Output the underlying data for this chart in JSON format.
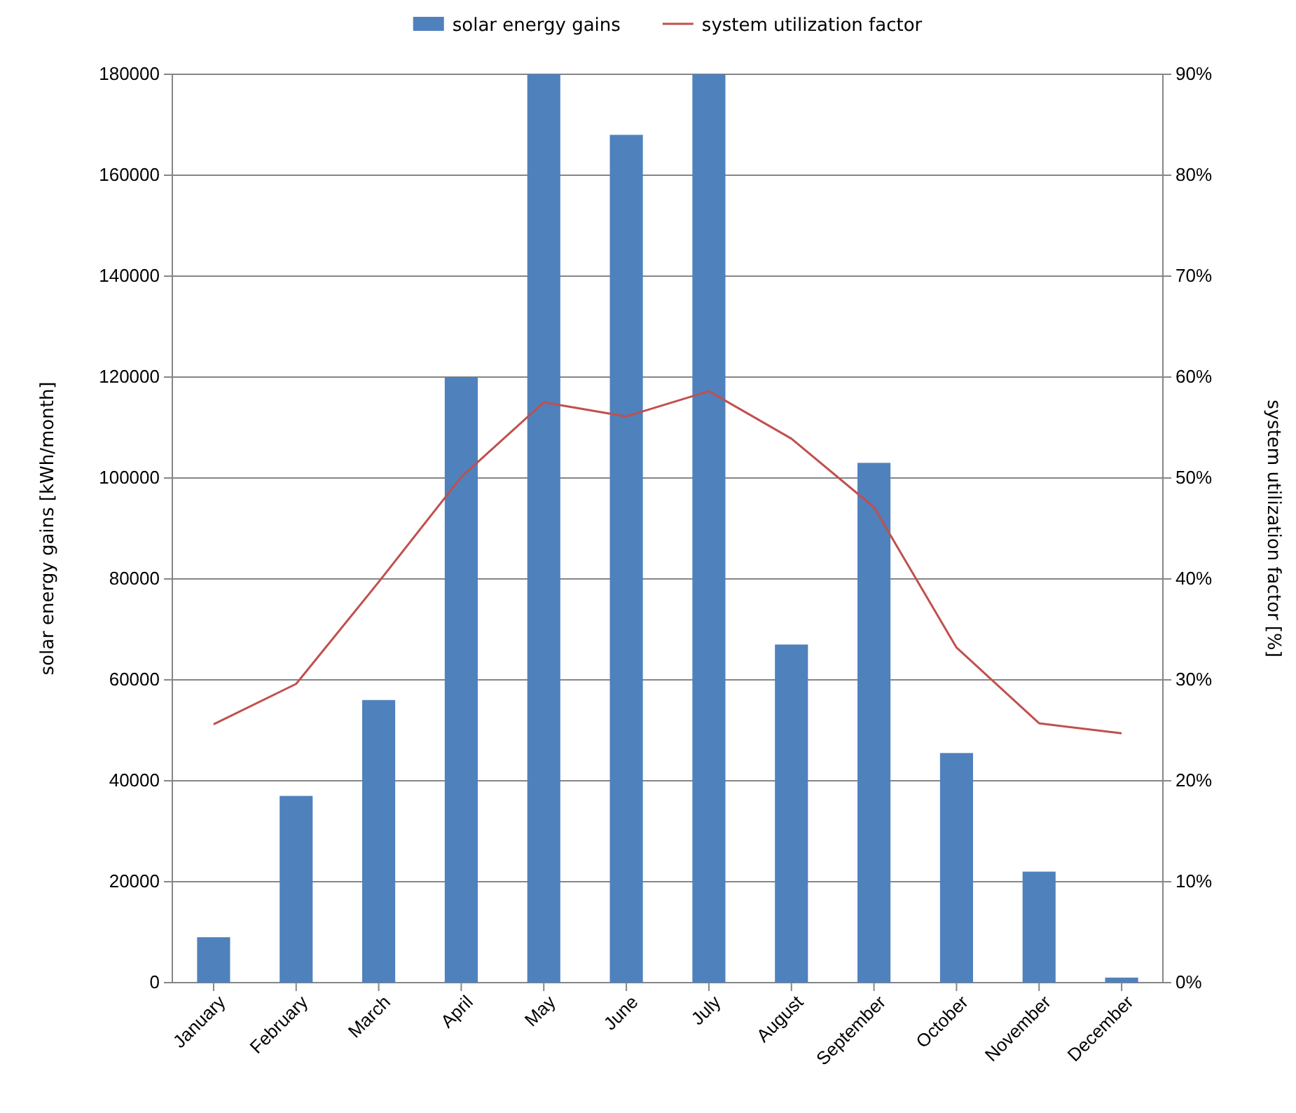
{
  "chart_data": {
    "type": "bar",
    "categories": [
      "January",
      "February",
      "March",
      "April",
      "May",
      "June",
      "July",
      "August",
      "September",
      "October",
      "November",
      "December"
    ],
    "series": [
      {
        "name": "solar energy gains",
        "color": "#4f81bd",
        "values": [
          9000,
          37000,
          56000,
          120000,
          180000,
          168000,
          180000,
          67000,
          103000,
          45500,
          22000,
          1000
        ]
      },
      {
        "name": "system utilization factor",
        "type": "line",
        "axis": "y2",
        "color": "#c0504d",
        "values": [
          25.6,
          29.6,
          39.7,
          50.1,
          57.5,
          56.1,
          58.6,
          53.9,
          47.1,
          33.2,
          25.7,
          24.7
        ]
      }
    ],
    "ylabel": "solar energy gains  [kWh/month]",
    "y2label": "system utilization  factor  [%]",
    "ylim": [
      0,
      180000
    ],
    "yticks": [
      0,
      20000,
      40000,
      60000,
      80000,
      100000,
      120000,
      140000,
      160000,
      180000
    ],
    "y2lim": [
      0,
      90
    ],
    "y2ticks": [
      {
        "value": 0,
        "label": "0%"
      },
      {
        "value": 10,
        "label": "10%"
      },
      {
        "value": 20,
        "label": "20%"
      },
      {
        "value": 30,
        "label": "30%"
      },
      {
        "value": 40,
        "label": "40%"
      },
      {
        "value": 50,
        "label": "50%"
      },
      {
        "value": 60,
        "label": "60%"
      },
      {
        "value": 70,
        "label": "70%"
      },
      {
        "value": 80,
        "label": "80%"
      },
      {
        "value": 90,
        "label": "90%"
      }
    ],
    "grid": "y",
    "legend": "top",
    "marker": "none"
  }
}
